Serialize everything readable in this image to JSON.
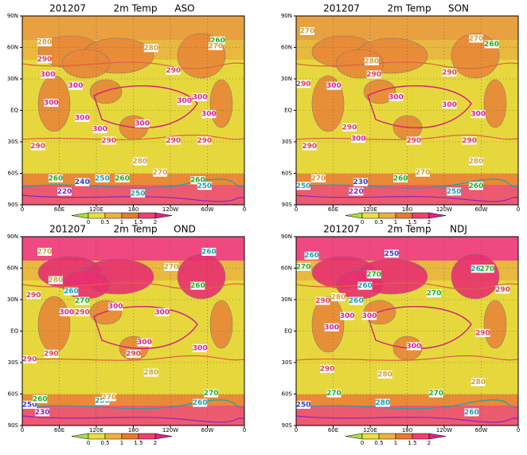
{
  "panels": [
    {
      "date": "201207",
      "variable": "2m Temp",
      "season": "ASO",
      "contour_labels": [
        "280",
        "290",
        "300",
        "300",
        "300",
        "300",
        "300",
        "300",
        "290",
        "290",
        "290",
        "280",
        "270",
        "260",
        "240",
        "250",
        "260",
        "220",
        "250",
        "280",
        "260",
        "270",
        "290",
        "300",
        "300",
        "300",
        "290",
        "260",
        "250"
      ]
    },
    {
      "date": "201207",
      "variable": "2m Temp",
      "season": "SON",
      "contour_labels": [
        "270",
        "280",
        "290",
        "300",
        "300",
        "300",
        "300",
        "290",
        "300",
        "290",
        "290",
        "290",
        "280",
        "270",
        "270",
        "260",
        "250",
        "230",
        "220",
        "250",
        "260",
        "270",
        "260",
        "290",
        "290"
      ]
    },
    {
      "date": "201207",
      "variable": "2m Temp",
      "season": "OND",
      "contour_labels": [
        "270",
        "260",
        "280",
        "260",
        "290",
        "270",
        "300",
        "290",
        "300",
        "300",
        "300",
        "290",
        "290",
        "300",
        "290",
        "280",
        "270",
        "260",
        "250",
        "230",
        "250",
        "270",
        "260",
        "270",
        "260"
      ]
    },
    {
      "date": "201207",
      "variable": "2m Temp",
      "season": "NDJ",
      "contour_labels": [
        "260",
        "250",
        "270",
        "260",
        "270",
        "260",
        "270",
        "280",
        "260",
        "290",
        "300",
        "300",
        "270",
        "290",
        "300",
        "300",
        "290",
        "280",
        "280",
        "270",
        "270",
        "250",
        "280",
        "260",
        "290"
      ]
    }
  ],
  "lat_labels": [
    "90N",
    "60N",
    "30N",
    "EQ",
    "30S",
    "60S",
    "90S"
  ],
  "lon_labels": [
    "0",
    "60E",
    "120E",
    "180",
    "120W",
    "60W",
    "0"
  ],
  "colorbar_labels": [
    "0",
    "0.5",
    "1",
    "1.5",
    "2"
  ]
}
